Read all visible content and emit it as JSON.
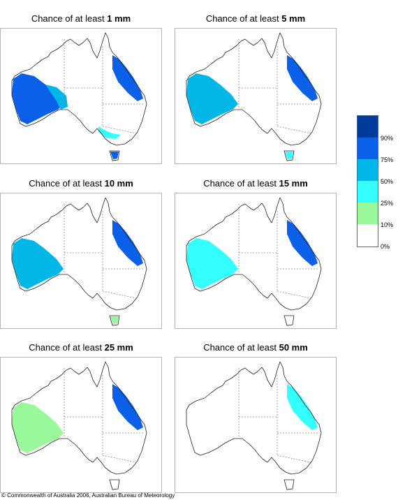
{
  "panels": [
    {
      "title_prefix": "Chance of at least ",
      "amount": "1 mm",
      "areas": [
        {
          "region": "south-west-western-australia",
          "class": "75-90%"
        },
        {
          "region": "western-australia-edge",
          "class": "50-75%"
        },
        {
          "region": "eastern-queensland",
          "class": "75-90%"
        },
        {
          "region": "southern-victoria",
          "class": "25-50%"
        },
        {
          "region": "tasmania",
          "class": "75-90%"
        }
      ]
    },
    {
      "title_prefix": "Chance of at least ",
      "amount": "5 mm",
      "areas": [
        {
          "region": "south-west-western-australia",
          "class": "50-75%"
        },
        {
          "region": "eastern-queensland",
          "class": "75-90%"
        },
        {
          "region": "tasmania",
          "class": "25-50%"
        }
      ]
    },
    {
      "title_prefix": "Chance of at least ",
      "amount": "10 mm",
      "areas": [
        {
          "region": "south-west-western-australia",
          "class": "50-75%"
        },
        {
          "region": "eastern-queensland",
          "class": "75-90%"
        },
        {
          "region": "tasmania",
          "class": "10-25%"
        }
      ]
    },
    {
      "title_prefix": "Chance of at least ",
      "amount": "15 mm",
      "areas": [
        {
          "region": "south-west-western-australia",
          "class": "25-50%"
        },
        {
          "region": "eastern-queensland",
          "class": "75-90%"
        }
      ]
    },
    {
      "title_prefix": "Chance of at least ",
      "amount": "25 mm",
      "areas": [
        {
          "region": "south-west-western-australia",
          "class": "10-25%"
        },
        {
          "region": "eastern-queensland",
          "class": "75-90%"
        }
      ]
    },
    {
      "title_prefix": "Chance of at least ",
      "amount": "50 mm",
      "areas": [
        {
          "region": "eastern-queensland",
          "class": "25-50%"
        }
      ]
    }
  ],
  "legend": {
    "labels": [
      "90%",
      "75%",
      "50%",
      "25%",
      "10%",
      "0%"
    ],
    "colors": [
      "#003a9a",
      "#0a60e8",
      "#00b7e8",
      "#33ffff",
      "#99f99a",
      "#ffffff"
    ]
  },
  "copyright": "© Commonwealth of Australia 2006, Australian Bureau of Meteorology"
}
